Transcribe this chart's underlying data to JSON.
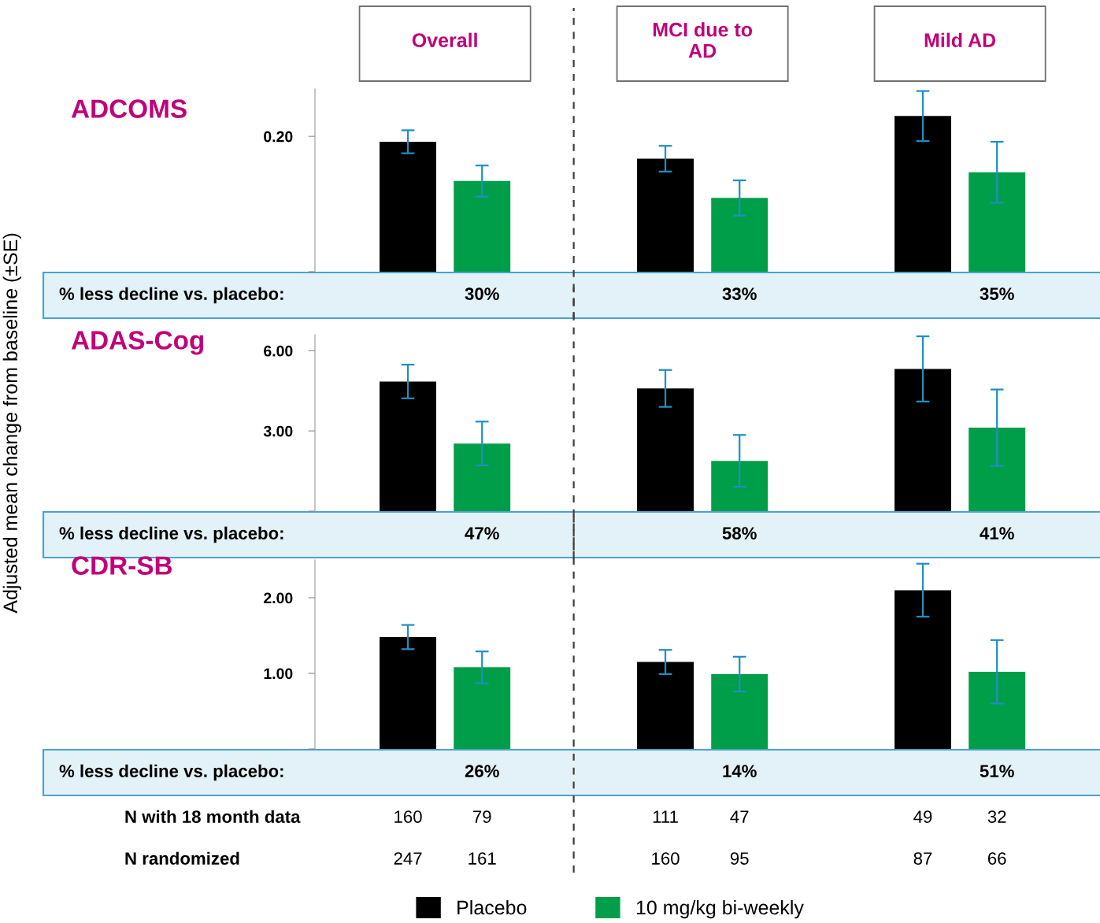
{
  "chart_data": [
    {
      "type": "bar",
      "title": "ADCOMS",
      "categories": [
        "Overall",
        "MCI due to\nAD",
        "Mild AD"
      ],
      "series": [
        {
          "color": "#000000",
          "values": [
            0.192,
            0.167,
            0.23
          ],
          "errors": [
            0.017,
            0.019,
            0.037
          ]
        },
        {
          "color": "#009e49",
          "values": [
            0.134,
            0.109,
            0.147
          ],
          "errors": [
            0.023,
            0.026,
            0.045
          ]
        }
      ],
      "ylim": [
        0,
        0.27
      ],
      "yticks": [
        {
          "value": 0,
          "label": null
        },
        {
          "value": 0.2,
          "label": "0.20"
        }
      ],
      "annotations": [
        "% less decline vs. placebo:",
        "30%",
        "33%",
        "35%"
      ]
    },
    {
      "type": "bar",
      "title": "ADAS-Cog",
      "ylabel": "Adjusted mean change from baseline (±SE)",
      "categories": [
        null,
        null,
        null
      ],
      "tick_labels": "y",
      "series": [
        {
          "color": "#000000",
          "values": [
            4.85,
            4.59,
            5.32
          ],
          "errors": [
            0.63,
            0.69,
            1.22
          ]
        },
        {
          "color": "#009e49",
          "values": [
            2.53,
            1.88,
            3.12
          ],
          "errors": [
            0.82,
            0.97,
            1.43
          ]
        }
      ],
      "ylim": [
        0,
        6.6
      ],
      "yticks": [
        {
          "value": 0,
          "label": null
        },
        {
          "value": 3,
          "label": "3.00"
        },
        {
          "value": 6,
          "label": "6.00"
        }
      ],
      "annotations": [
        "% less decline vs. placebo:",
        "47%",
        "58%",
        "41%"
      ]
    },
    {
      "type": "bar",
      "title": "CDR-SB",
      "categories": [
        null,
        null,
        null
      ],
      "tick_labels": "y",
      "legend": "bottom",
      "series": [
        {
          "name": "Placebo",
          "color": "#000000",
          "values": [
            1.48,
            1.15,
            2.1
          ],
          "errors": [
            0.16,
            0.16,
            0.35
          ]
        },
        {
          "name": "10 mg/kg bi-weekly",
          "color": "#009e49",
          "values": [
            1.08,
            0.99,
            1.02
          ],
          "errors": [
            0.21,
            0.23,
            0.42
          ]
        }
      ],
      "ylim": [
        0,
        2.5
      ],
      "yticks": [
        {
          "value": 0,
          "label": null
        },
        {
          "value": 1,
          "label": "1.00"
        },
        {
          "value": 2,
          "label": "2.00"
        }
      ],
      "annotations": [
        "% less decline vs. placebo:",
        "26%",
        "14%",
        "51%",
        "N with 18 month data",
        "160",
        "79",
        "111",
        "47",
        "49",
        "32",
        "N randomized",
        "247",
        "161",
        "160",
        "95",
        "87",
        "66"
      ]
    }
  ]
}
